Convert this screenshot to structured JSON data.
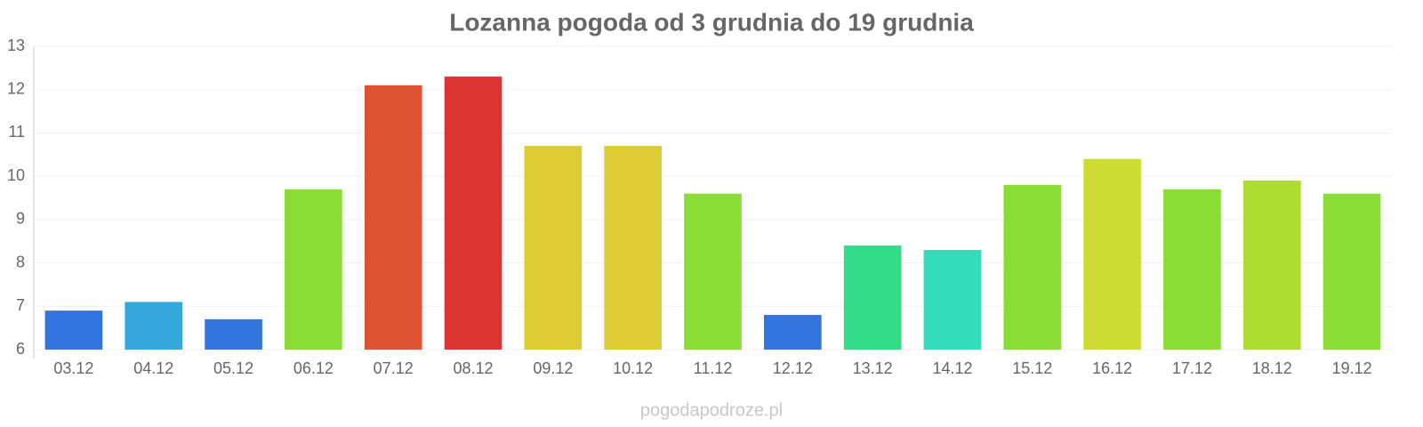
{
  "chart_data": {
    "type": "bar",
    "title": "Lozanna pogoda od 3 grudnia do 19 grudnia",
    "categories": [
      "03.12",
      "04.12",
      "05.12",
      "06.12",
      "07.12",
      "08.12",
      "09.12",
      "10.12",
      "11.12",
      "12.12",
      "13.12",
      "14.12",
      "15.12",
      "16.12",
      "17.12",
      "18.12",
      "19.12"
    ],
    "values": [
      6.9,
      7.1,
      6.7,
      9.7,
      12.1,
      12.3,
      10.7,
      10.7,
      9.6,
      6.8,
      8.4,
      8.3,
      9.8,
      10.4,
      9.7,
      9.9,
      9.6
    ],
    "colors": [
      "#3375dc",
      "#35a8dc",
      "#3375dc",
      "#8bdc35",
      "#dc5233",
      "#dc3333",
      "#dccb33",
      "#dccb33",
      "#8bdc35",
      "#3375dc",
      "#35dc88",
      "#35dcbb",
      "#8bdc35",
      "#cddc33",
      "#8bdc35",
      "#addc33",
      "#8bdc35"
    ],
    "ylim": [
      6,
      13
    ],
    "yticks": [
      6,
      7,
      8,
      9,
      10,
      11,
      12,
      13
    ],
    "grid": true,
    "source": "pogodapodroze.pl"
  }
}
